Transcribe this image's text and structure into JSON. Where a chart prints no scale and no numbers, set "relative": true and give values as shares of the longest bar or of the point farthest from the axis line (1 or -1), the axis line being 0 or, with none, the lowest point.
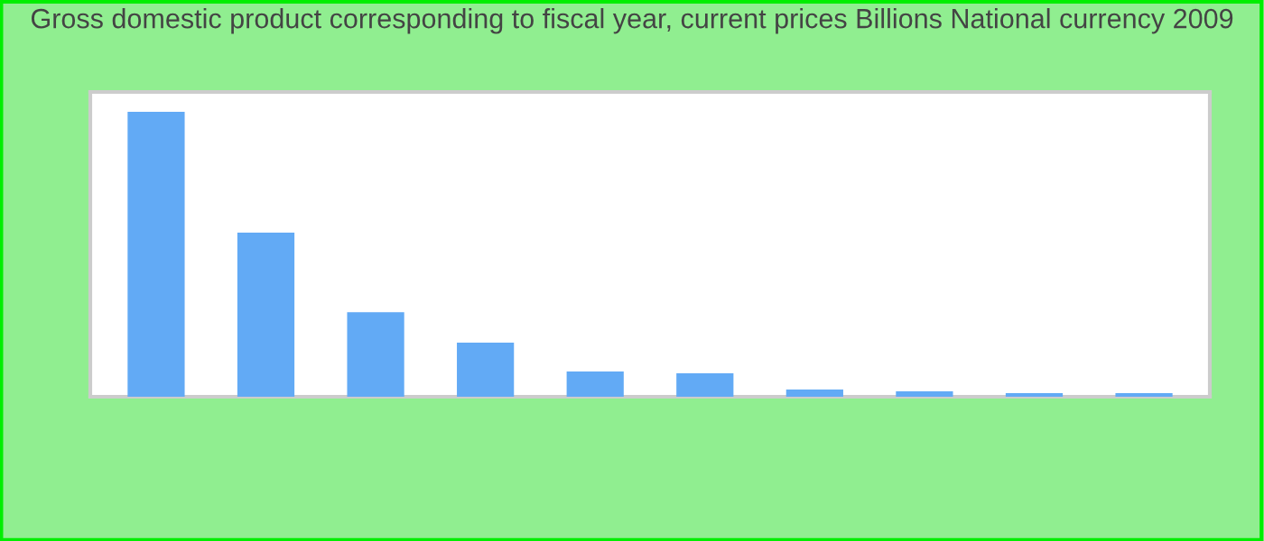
{
  "chart_data": {
    "type": "bar",
    "title": "Gross domestic product corresponding to fiscal year, current prices Billions National currency 2009",
    "categories": [
      null,
      null,
      null,
      null,
      null,
      null,
      null,
      null,
      null,
      null
    ],
    "values": [
      1,
      0.576,
      0.297,
      0.19,
      0.089,
      0.082,
      0.025,
      0.019,
      0.013,
      0.013
    ],
    "color": "#62aaf5",
    "relative": true,
    "legend": false
  }
}
